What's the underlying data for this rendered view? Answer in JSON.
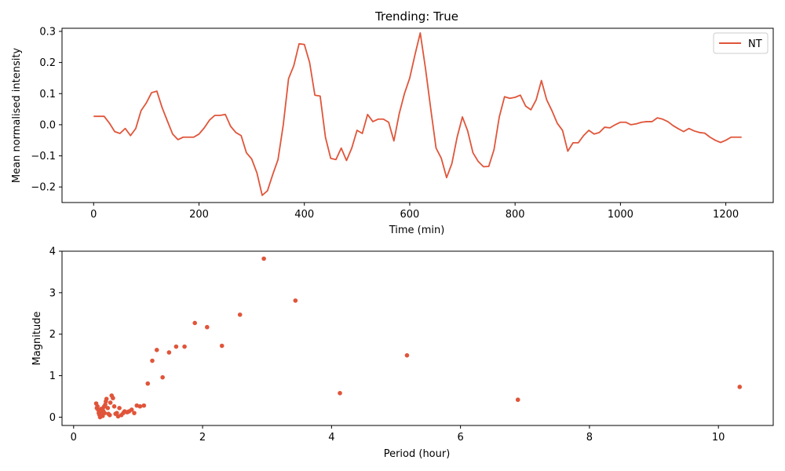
{
  "colors": {
    "series": "#e0553a",
    "axes": "#000000",
    "legend_border": "#cccccc"
  },
  "chart_data": [
    {
      "type": "line",
      "title": "Trending: True",
      "xlabel": "Time (min)",
      "ylabel": "Mean normalised intensity",
      "xlim": [
        -60,
        1290
      ],
      "ylim": [
        -0.25,
        0.31
      ],
      "xticks": [
        0,
        200,
        400,
        600,
        800,
        1000,
        1200
      ],
      "yticks": [
        -0.2,
        -0.1,
        0.0,
        0.1,
        0.2,
        0.3
      ],
      "ytick_labels": [
        "−0.2",
        "−0.1",
        "0.0",
        "0.1",
        "0.2",
        "0.3"
      ],
      "grid": false,
      "legend": {
        "position": "top-right",
        "entries": [
          "NT"
        ]
      },
      "series": [
        {
          "name": "NT",
          "x": [
            0,
            10,
            20,
            30,
            40,
            50,
            60,
            70,
            80,
            90,
            100,
            110,
            120,
            130,
            140,
            150,
            160,
            170,
            180,
            190,
            200,
            210,
            220,
            230,
            240,
            250,
            260,
            270,
            280,
            290,
            300,
            310,
            320,
            330,
            340,
            350,
            360,
            370,
            380,
            390,
            400,
            410,
            420,
            430,
            440,
            450,
            460,
            470,
            480,
            490,
            500,
            510,
            520,
            530,
            540,
            550,
            560,
            570,
            580,
            590,
            600,
            610,
            620,
            630,
            640,
            650,
            660,
            670,
            680,
            690,
            700,
            710,
            720,
            730,
            740,
            750,
            760,
            770,
            780,
            790,
            800,
            810,
            820,
            830,
            840,
            850,
            860,
            870,
            880,
            890,
            900,
            910,
            920,
            930,
            940,
            950,
            960,
            970,
            980,
            990,
            1000,
            1010,
            1020,
            1030,
            1040,
            1050,
            1060,
            1070,
            1080,
            1090,
            1100,
            1110,
            1120,
            1130,
            1140,
            1150,
            1160,
            1170,
            1180,
            1190,
            1200,
            1210,
            1220,
            1230
          ],
          "y": [
            0.027,
            0.027,
            0.027,
            0.005,
            -0.022,
            -0.028,
            -0.012,
            -0.035,
            -0.012,
            0.045,
            0.07,
            0.103,
            0.108,
            0.055,
            0.012,
            -0.03,
            -0.048,
            -0.04,
            -0.04,
            -0.04,
            -0.03,
            -0.01,
            0.015,
            0.03,
            0.03,
            0.033,
            -0.005,
            -0.025,
            -0.035,
            -0.09,
            -0.11,
            -0.155,
            -0.227,
            -0.212,
            -0.16,
            -0.112,
            0.0,
            0.148,
            0.19,
            0.26,
            0.258,
            0.2,
            0.095,
            0.092,
            -0.04,
            -0.108,
            -0.112,
            -0.075,
            -0.115,
            -0.075,
            -0.018,
            -0.028,
            0.033,
            0.01,
            0.018,
            0.018,
            0.008,
            -0.052,
            0.035,
            0.1,
            0.15,
            0.225,
            0.295,
            0.18,
            0.05,
            -0.075,
            -0.108,
            -0.17,
            -0.125,
            -0.04,
            0.025,
            -0.02,
            -0.09,
            -0.118,
            -0.135,
            -0.134,
            -0.08,
            0.025,
            0.09,
            0.085,
            0.088,
            0.095,
            0.06,
            0.048,
            0.08,
            0.142,
            0.08,
            0.045,
            0.005,
            -0.018,
            -0.085,
            -0.058,
            -0.058,
            -0.035,
            -0.018,
            -0.03,
            -0.025,
            -0.008,
            -0.01,
            0.0,
            0.008,
            0.008,
            0.0,
            0.003,
            0.008,
            0.01,
            0.01,
            0.022,
            0.018,
            0.01,
            -0.003,
            -0.013,
            -0.022,
            -0.012,
            -0.02,
            -0.025,
            -0.027,
            -0.04,
            -0.05,
            -0.057,
            -0.05,
            -0.04,
            -0.04,
            -0.04
          ]
        }
      ]
    },
    {
      "type": "scatter",
      "title": "",
      "xlabel": "Period (hour)",
      "ylabel": "Magnitude",
      "xlim": [
        -0.18,
        10.85
      ],
      "ylim": [
        -0.2,
        4.0
      ],
      "xticks": [
        0,
        2,
        4,
        6,
        8,
        10
      ],
      "yticks": [
        0,
        1,
        2,
        3,
        4
      ],
      "grid": false,
      "series": [
        {
          "x": [
            10.33,
            6.89,
            5.17,
            4.13,
            3.44,
            2.95,
            2.58,
            2.3,
            2.07,
            1.88,
            1.72,
            1.59,
            1.48,
            1.38,
            1.29,
            1.22,
            1.15,
            1.09,
            1.03,
            0.98,
            0.94,
            0.9,
            0.86,
            0.83,
            0.79,
            0.77,
            0.74,
            0.71,
            0.69,
            0.67,
            0.65,
            0.63,
            0.61,
            0.59,
            0.57,
            0.56,
            0.54,
            0.53,
            0.51,
            0.5,
            0.49,
            0.48,
            0.47,
            0.46,
            0.45,
            0.44,
            0.43,
            0.42,
            0.41,
            0.4,
            0.39,
            0.38,
            0.37,
            0.36,
            0.35
          ],
          "y": [
            0.73,
            0.42,
            1.49,
            0.58,
            2.81,
            3.82,
            2.47,
            1.72,
            2.17,
            2.27,
            1.7,
            1.7,
            1.56,
            0.96,
            1.62,
            1.36,
            0.81,
            0.28,
            0.26,
            0.28,
            0.1,
            0.18,
            0.14,
            0.12,
            0.14,
            0.1,
            0.05,
            0.22,
            0.02,
            0.1,
            0.08,
            0.26,
            0.46,
            0.52,
            0.35,
            0.05,
            0.08,
            0.22,
            0.44,
            0.38,
            0.3,
            0.1,
            0.25,
            0.15,
            0.03,
            0.08,
            0.2,
            0.12,
            0.0,
            0.06,
            0.1,
            0.18,
            0.26,
            0.22,
            0.33
          ]
        }
      ]
    }
  ]
}
